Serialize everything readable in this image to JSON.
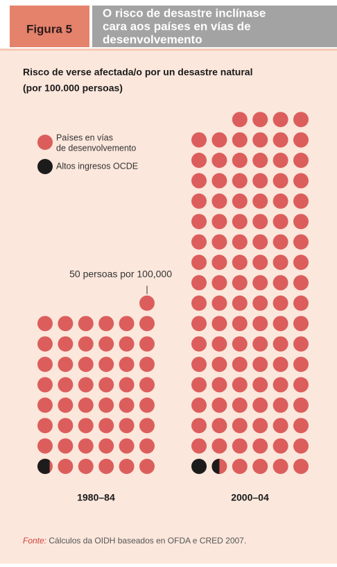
{
  "header": {
    "label": "Figura 5",
    "title_lines": [
      "O risco de desastre inclínase",
      "cara aos países en vías de",
      "desenvolvemento"
    ]
  },
  "chart_data": {
    "type": "pictograph",
    "title_lines": [
      "Risco de verse afectada/o por un desastre natural",
      "(por 100.000 persoas)"
    ],
    "categories": [
      "1980–84",
      "2000–04"
    ],
    "unit_value": 50,
    "annotation": "50 persoas por 100,000",
    "series": [
      {
        "name": "Altos ingresos OCDE",
        "color": "#1c1c1c",
        "values": [
          40,
          75
        ]
      },
      {
        "name": "Países en vías de desenvolvemento",
        "legend_lines": [
          "Países en vías",
          "de desenvolvemento"
        ],
        "color": "#dc5e5c",
        "values": [
          2410,
          5225
        ]
      }
    ]
  },
  "source": {
    "label": "Fonte:",
    "text": " Cálculos da OIDH baseados en OFDA e CRED 2007."
  }
}
